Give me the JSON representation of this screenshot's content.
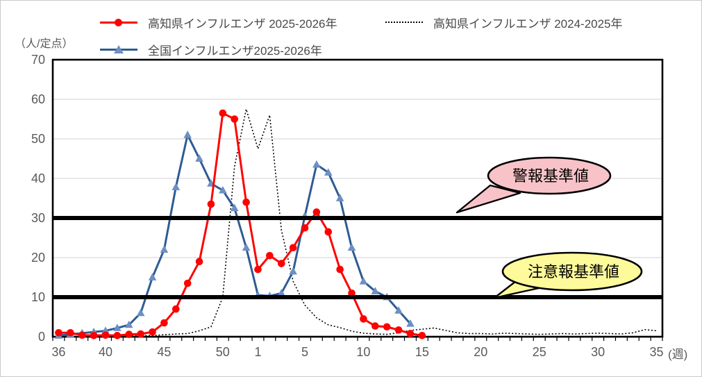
{
  "chart_title": "",
  "y_axis_title": "（人/定点）",
  "x_axis_unit": "(週)",
  "legend": {
    "kochi_current": "高知県インフルエンザ 2025-2026年",
    "kochi_previous": "高知県インフルエンザ 2024-2025年",
    "national_current": "全国インフルエンザ2025-2026年"
  },
  "colors": {
    "kochi_current_line": "#FF0000",
    "national_line": "#2E5B93",
    "national_marker": "#6C8FC4",
    "previous_line": "#000000",
    "gridline": "#D9D9D9",
    "threshold": "#000000",
    "alert_bubble_fill": "#F8C3C8",
    "warning_bubble_fill": "#FDFA9B",
    "axis_text": "#595959"
  },
  "chart_data": {
    "type": "line",
    "x_categories": [
      "36",
      "37",
      "38",
      "39",
      "40",
      "41",
      "42",
      "43",
      "44",
      "45",
      "46",
      "47",
      "48",
      "49",
      "50",
      "51",
      "52",
      "1",
      "2",
      "3",
      "4",
      "5",
      "6",
      "7",
      "8",
      "9",
      "10",
      "11",
      "12",
      "13",
      "14",
      "15",
      "16",
      "17",
      "18",
      "19",
      "20",
      "21",
      "22",
      "23",
      "24",
      "25",
      "26",
      "27",
      "28",
      "29",
      "30",
      "31",
      "32",
      "33",
      "34",
      "35"
    ],
    "x_tick_labels": [
      "36",
      "40",
      "45",
      "50",
      "1",
      "5",
      "10",
      "15",
      "20",
      "25",
      "30",
      "35"
    ],
    "ylim": [
      0,
      70
    ],
    "y_ticks": [
      0,
      10,
      20,
      30,
      40,
      50,
      60,
      70
    ],
    "grid_values": [
      20,
      40,
      50,
      60
    ],
    "legend_position": "top",
    "series": [
      {
        "name": "高知県インフルエンザ 2024-2025年",
        "style": "dotted",
        "color": "#000000",
        "values": [
          0.1,
          0.1,
          0.1,
          0.1,
          0.1,
          0.2,
          0.2,
          0.3,
          0.3,
          0.5,
          0.7,
          0.8,
          1.5,
          2.5,
          10,
          43,
          57.5,
          47.5,
          56,
          27,
          14,
          8,
          4.8,
          3,
          2.3,
          1.4,
          0.9,
          0.7,
          0.6,
          1.0,
          1.6,
          1.9,
          2.2,
          1.6,
          1.0,
          0.8,
          0.8,
          0.7,
          0.9,
          0.8,
          0.7,
          0.6,
          0.7,
          0.8,
          0.7,
          0.8,
          0.9,
          0.8,
          0.7,
          1.0,
          1.8,
          1.5
        ]
      },
      {
        "name": "全国インフルエンザ2025-2026年",
        "style": "solid",
        "color": "#2E5B93",
        "marker": "triangle",
        "marker_color": "#6C8FC4",
        "values": [
          0.3,
          0.6,
          0.9,
          1.2,
          1.5,
          2.2,
          3.0,
          6.0,
          15,
          22,
          37.8,
          51,
          45,
          38.7,
          37,
          32.5,
          22.5,
          10.5,
          10.3,
          11,
          16.5,
          30.5,
          43.5,
          41.5,
          35,
          22.5,
          14,
          11.5,
          10,
          6.6,
          3.3,
          null,
          null,
          null,
          null,
          null,
          null,
          null,
          null,
          null,
          null,
          null,
          null,
          null,
          null,
          null,
          null,
          null,
          null,
          null,
          null,
          null
        ]
      },
      {
        "name": "高知県インフルエンザ 2025-2026年",
        "style": "solid",
        "color": "#FF0000",
        "marker": "circle",
        "marker_color": "#FF0000",
        "values": [
          1.0,
          1.0,
          0.4,
          0.3,
          0.4,
          0.3,
          0.6,
          0.7,
          1.2,
          3.5,
          7,
          13.5,
          19,
          33.5,
          56.5,
          55,
          34,
          17,
          20.5,
          18.5,
          22.5,
          27.5,
          31.5,
          26.5,
          17,
          11,
          4.5,
          2.7,
          2.5,
          1.7,
          0.8,
          0.3,
          null,
          null,
          null,
          null,
          null,
          null,
          null,
          null,
          null,
          null,
          null,
          null,
          null,
          null,
          null,
          null,
          null,
          null,
          null,
          null
        ]
      }
    ],
    "thresholds": [
      {
        "id": "alert",
        "label": "警報基準値",
        "value": 30
      },
      {
        "id": "warning",
        "label": "注意報基準値",
        "value": 10
      }
    ],
    "callouts": [
      {
        "id": "alert",
        "text": "警報基準値",
        "fill": "#F8C3C8"
      },
      {
        "id": "warning",
        "text": "注意報基準値",
        "fill": "#FDFA9B"
      }
    ]
  }
}
